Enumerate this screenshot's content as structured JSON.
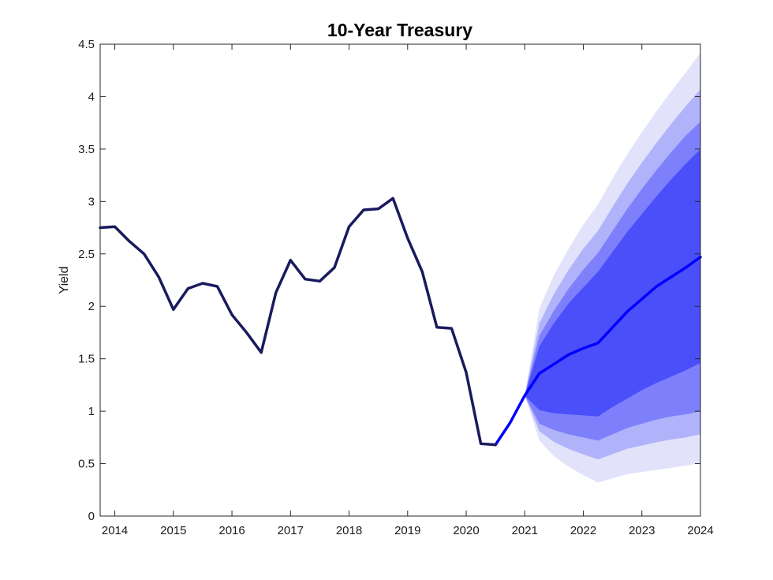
{
  "chart_data": {
    "type": "area",
    "title": "10-Year Treasury",
    "xlabel": "",
    "ylabel": "Yield",
    "xlim": [
      2013.75,
      2024
    ],
    "ylim": [
      0,
      4.5
    ],
    "x_ticks": [
      2014,
      2015,
      2016,
      2017,
      2018,
      2019,
      2020,
      2021,
      2022,
      2023,
      2024
    ],
    "y_ticks": [
      0,
      0.5,
      1,
      1.5,
      2,
      2.5,
      3,
      3.5,
      4,
      4.5
    ],
    "y_tick_labels": [
      "0",
      "0.5",
      "1",
      "1.5",
      "2",
      "2.5",
      "3",
      "3.5",
      "4",
      "4.5"
    ],
    "grid": false,
    "colors": {
      "history": "#1a1a5e",
      "forecast": "#0000ff",
      "band_outer": "#e2e3fb",
      "band_2": "#b1b3fa",
      "band_3": "#7e80fb",
      "band_inner": "#4b4ffa"
    },
    "history": {
      "x": [
        2013.75,
        2014.0,
        2014.25,
        2014.5,
        2014.75,
        2015.0,
        2015.25,
        2015.5,
        2015.75,
        2016.0,
        2016.25,
        2016.5,
        2016.75,
        2017.0,
        2017.25,
        2017.5,
        2017.75,
        2018.0,
        2018.25,
        2018.5,
        2018.75,
        2019.0,
        2019.25,
        2019.5,
        2019.75,
        2020.0,
        2020.25,
        2020.5
      ],
      "y": [
        2.75,
        2.76,
        2.62,
        2.5,
        2.28,
        1.97,
        2.17,
        2.22,
        2.19,
        1.92,
        1.75,
        1.56,
        2.13,
        2.44,
        2.26,
        2.24,
        2.37,
        2.76,
        2.92,
        2.93,
        3.03,
        2.65,
        2.33,
        1.8,
        1.79,
        1.37,
        0.69,
        0.68
      ]
    },
    "forecast": {
      "x": [
        2020.5,
        2020.75,
        2021.0,
        2021.25,
        2021.5,
        2021.75,
        2022.0,
        2022.25,
        2022.5,
        2022.75,
        2023.0,
        2023.25,
        2023.5,
        2023.75,
        2024.0
      ],
      "y": [
        0.68,
        0.89,
        1.15,
        1.36,
        1.45,
        1.54,
        1.6,
        1.65,
        1.8,
        1.95,
        2.07,
        2.19,
        2.28,
        2.37,
        2.47
      ]
    },
    "bands": {
      "x": [
        2021.0,
        2021.25,
        2021.5,
        2021.75,
        2022.0,
        2022.25,
        2022.5,
        2022.75,
        2023.0,
        2023.25,
        2023.5,
        2023.75,
        2024.0
      ],
      "outer": {
        "upper": [
          1.15,
          1.98,
          2.3,
          2.55,
          2.78,
          2.97,
          3.22,
          3.45,
          3.66,
          3.86,
          4.05,
          4.23,
          4.42
        ],
        "lower": [
          1.15,
          0.72,
          0.57,
          0.47,
          0.39,
          0.32,
          0.36,
          0.4,
          0.42,
          0.44,
          0.46,
          0.48,
          0.51
        ]
      },
      "band_2": {
        "upper": [
          1.15,
          1.84,
          2.12,
          2.35,
          2.55,
          2.72,
          2.95,
          3.17,
          3.37,
          3.56,
          3.74,
          3.91,
          4.07
        ]
      },
      "band_3": {
        "upper": [
          1.15,
          1.72,
          1.96,
          2.17,
          2.35,
          2.51,
          2.72,
          2.93,
          3.12,
          3.3,
          3.47,
          3.63,
          3.76
        ],
        "lower": [
          1.15,
          0.88,
          0.82,
          0.78,
          0.75,
          0.72,
          0.78,
          0.84,
          0.88,
          0.92,
          0.95,
          0.97,
          1.0
        ]
      },
      "inner": {
        "upper": [
          1.15,
          1.62,
          1.84,
          2.03,
          2.18,
          2.33,
          2.52,
          2.71,
          2.88,
          3.05,
          3.21,
          3.36,
          3.5
        ],
        "lower": [
          1.15,
          1.01,
          0.98,
          0.97,
          0.96,
          0.95,
          1.04,
          1.12,
          1.2,
          1.27,
          1.33,
          1.39,
          1.46
        ]
      }
    }
  }
}
